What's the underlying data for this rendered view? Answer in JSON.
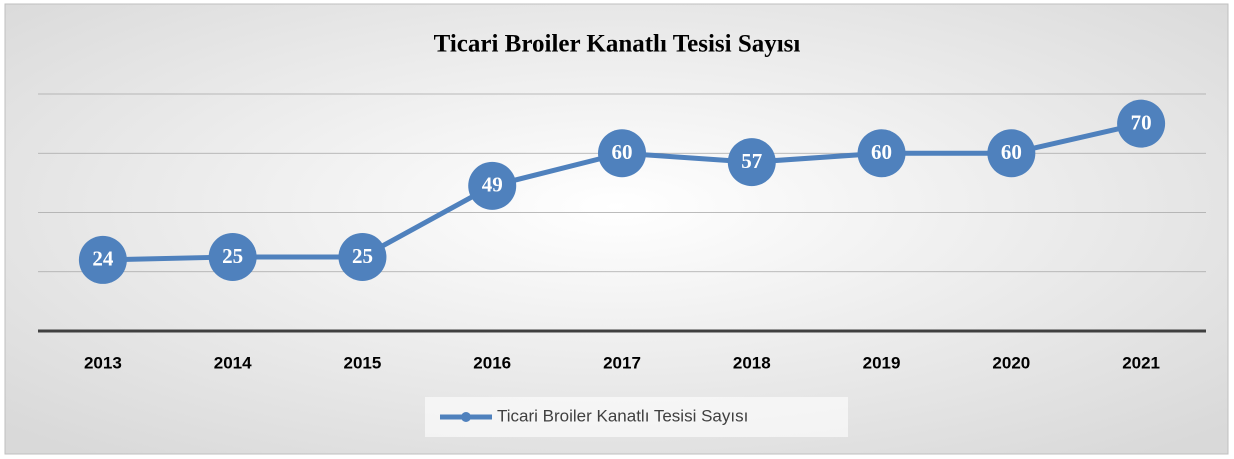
{
  "chart_data": {
    "type": "line",
    "title": "Ticari Broiler Kanatlı Tesisi Sayısı",
    "categories": [
      "2013",
      "2014",
      "2015",
      "2016",
      "2017",
      "2018",
      "2019",
      "2020",
      "2021"
    ],
    "series": [
      {
        "name": "Ticari Broiler Kanatlı Tesisi Sayısı",
        "color": "#4f81bd",
        "values": [
          24,
          25,
          25,
          49,
          60,
          57,
          60,
          60,
          70
        ]
      }
    ],
    "ylim": [
      0,
      80
    ],
    "yticks": [
      0,
      20,
      40,
      60,
      80
    ],
    "grid": true,
    "legend": "bottom"
  }
}
